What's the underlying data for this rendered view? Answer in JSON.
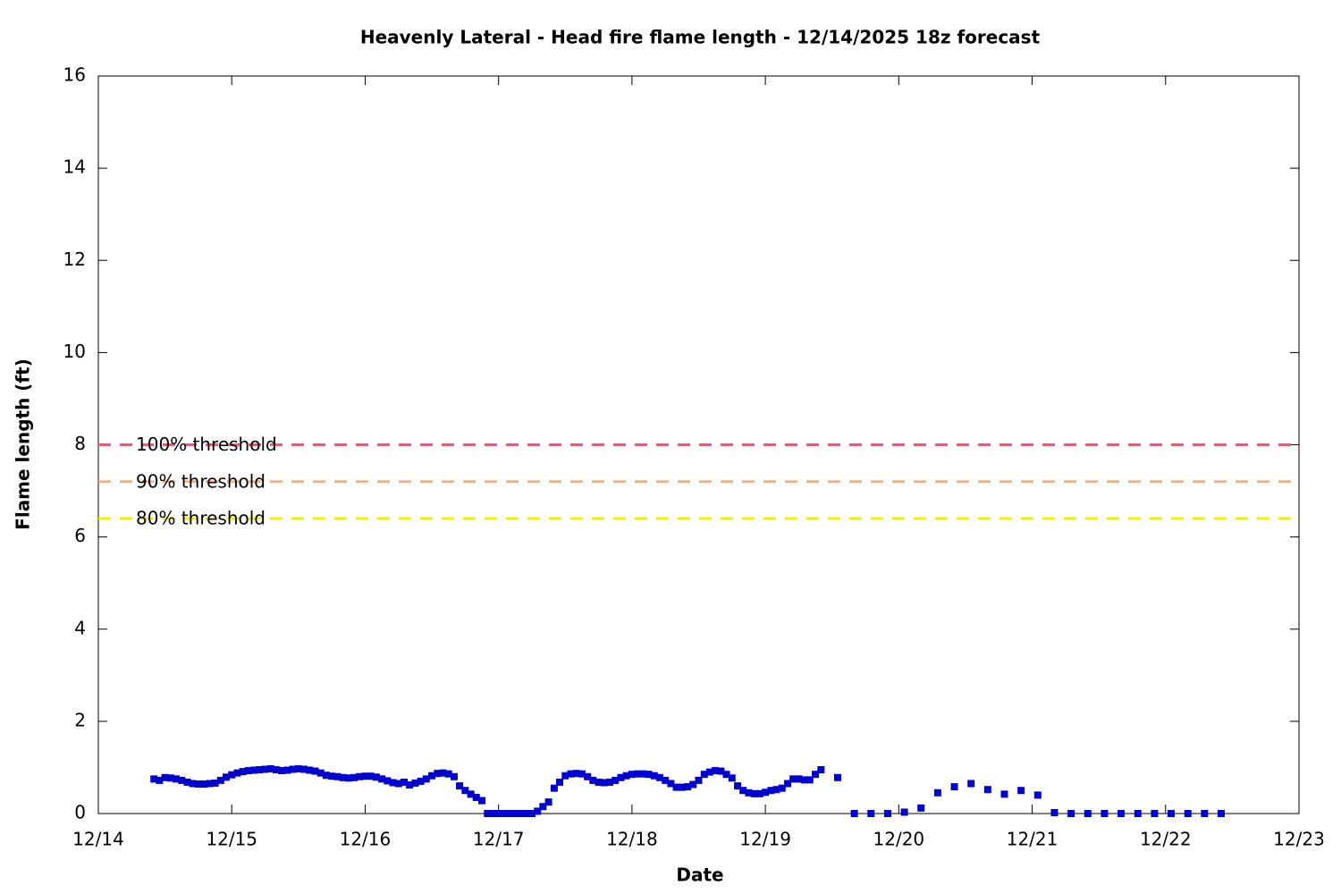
{
  "chart_data": {
    "type": "scatter",
    "title": "Heavenly Lateral - Head fire flame length - 12/14/2025 18z forecast",
    "x_label": "Date",
    "y_label": "Flame length (ft)",
    "xlim": [
      0,
      9
    ],
    "ylim": [
      0,
      16
    ],
    "xticks": [
      {
        "value": 0,
        "label": "12/14"
      },
      {
        "value": 1,
        "label": "12/15"
      },
      {
        "value": 2,
        "label": "12/16"
      },
      {
        "value": 3,
        "label": "12/17"
      },
      {
        "value": 4,
        "label": "12/18"
      },
      {
        "value": 5,
        "label": "12/19"
      },
      {
        "value": 6,
        "label": "12/20"
      },
      {
        "value": 7,
        "label": "12/21"
      },
      {
        "value": 8,
        "label": "12/22"
      },
      {
        "value": 9,
        "label": "12/23"
      }
    ],
    "yticks": [
      0,
      2,
      4,
      6,
      8,
      10,
      12,
      14,
      16
    ],
    "thresholds": [
      {
        "name": "100% threshold",
        "value": 8,
        "color": "#e0607a"
      },
      {
        "name": "90% threshold",
        "value": 7.2,
        "color": "#f5b07e"
      },
      {
        "name": "80% threshold",
        "value": 6.4,
        "color": "#f0f000"
      }
    ],
    "series": [
      {
        "color": "#0000d0",
        "x": [
          0.417,
          0.458,
          0.5,
          0.542,
          0.583,
          0.625,
          0.667,
          0.708,
          0.75,
          0.792,
          0.833,
          0.875,
          0.917,
          0.958,
          1,
          1.042,
          1.083,
          1.125,
          1.167,
          1.208,
          1.25,
          1.292,
          1.333,
          1.375,
          1.417,
          1.458,
          1.5,
          1.542,
          1.583,
          1.625,
          1.667,
          1.708,
          1.75,
          1.792,
          1.833,
          1.875,
          1.917,
          1.958,
          2,
          2.042,
          2.083,
          2.125,
          2.167,
          2.208,
          2.25,
          2.292,
          2.333,
          2.375,
          2.417,
          2.458,
          2.5,
          2.542,
          2.583,
          2.625,
          2.667,
          2.708,
          2.75,
          2.792,
          2.833,
          2.875,
          2.917,
          2.958,
          3,
          3.042,
          3.083,
          3.125,
          3.167,
          3.208,
          3.25,
          3.292,
          3.333,
          3.375,
          3.417,
          3.458,
          3.5,
          3.542,
          3.583,
          3.625,
          3.667,
          3.708,
          3.75,
          3.792,
          3.833,
          3.875,
          3.917,
          3.958,
          4,
          4.042,
          4.083,
          4.125,
          4.167,
          4.208,
          4.25,
          4.292,
          4.333,
          4.375,
          4.417,
          4.458,
          4.5,
          4.542,
          4.583,
          4.625,
          4.667,
          4.708,
          4.75,
          4.792,
          4.833,
          4.875,
          4.917,
          4.958,
          5,
          5.042,
          5.083,
          5.125,
          5.167,
          5.208,
          5.25,
          5.292,
          5.333,
          5.375,
          5.417,
          5.542,
          5.667,
          5.792,
          5.917,
          6.042,
          6.167,
          6.292,
          6.417,
          6.542,
          6.667,
          6.792,
          6.917,
          7.042,
          7.167,
          7.292,
          7.417,
          7.542,
          7.667,
          7.792,
          7.917,
          8.042,
          8.167,
          8.292,
          8.417
        ],
        "values": [
          0.75,
          0.72,
          0.78,
          0.77,
          0.75,
          0.72,
          0.68,
          0.65,
          0.64,
          0.64,
          0.65,
          0.66,
          0.72,
          0.79,
          0.84,
          0.88,
          0.91,
          0.93,
          0.94,
          0.95,
          0.96,
          0.97,
          0.95,
          0.93,
          0.94,
          0.96,
          0.97,
          0.96,
          0.94,
          0.92,
          0.88,
          0.83,
          0.81,
          0.8,
          0.78,
          0.77,
          0.78,
          0.8,
          0.81,
          0.81,
          0.79,
          0.75,
          0.71,
          0.67,
          0.65,
          0.68,
          0.62,
          0.66,
          0.7,
          0.75,
          0.82,
          0.87,
          0.88,
          0.86,
          0.8,
          0.6,
          0.5,
          0.42,
          0.35,
          0.28,
          0,
          0,
          0,
          0,
          0,
          0,
          0,
          0,
          0,
          0.05,
          0.15,
          0.25,
          0.55,
          0.68,
          0.82,
          0.86,
          0.87,
          0.86,
          0.8,
          0.72,
          0.68,
          0.67,
          0.68,
          0.72,
          0.78,
          0.82,
          0.85,
          0.86,
          0.86,
          0.85,
          0.82,
          0.78,
          0.72,
          0.65,
          0.57,
          0.57,
          0.58,
          0.63,
          0.72,
          0.85,
          0.9,
          0.93,
          0.92,
          0.85,
          0.77,
          0.6,
          0.5,
          0.45,
          0.43,
          0.43,
          0.46,
          0.5,
          0.52,
          0.55,
          0.65,
          0.75,
          0.75,
          0.73,
          0.73,
          0.85,
          0.95,
          0.78,
          0,
          0,
          0,
          0.03,
          0.12,
          0.45,
          0.58,
          0.65,
          0.52,
          0.42,
          0.5,
          0.4,
          0.02,
          0,
          0,
          0,
          0,
          0,
          0,
          0,
          0,
          0,
          0
        ]
      }
    ]
  }
}
